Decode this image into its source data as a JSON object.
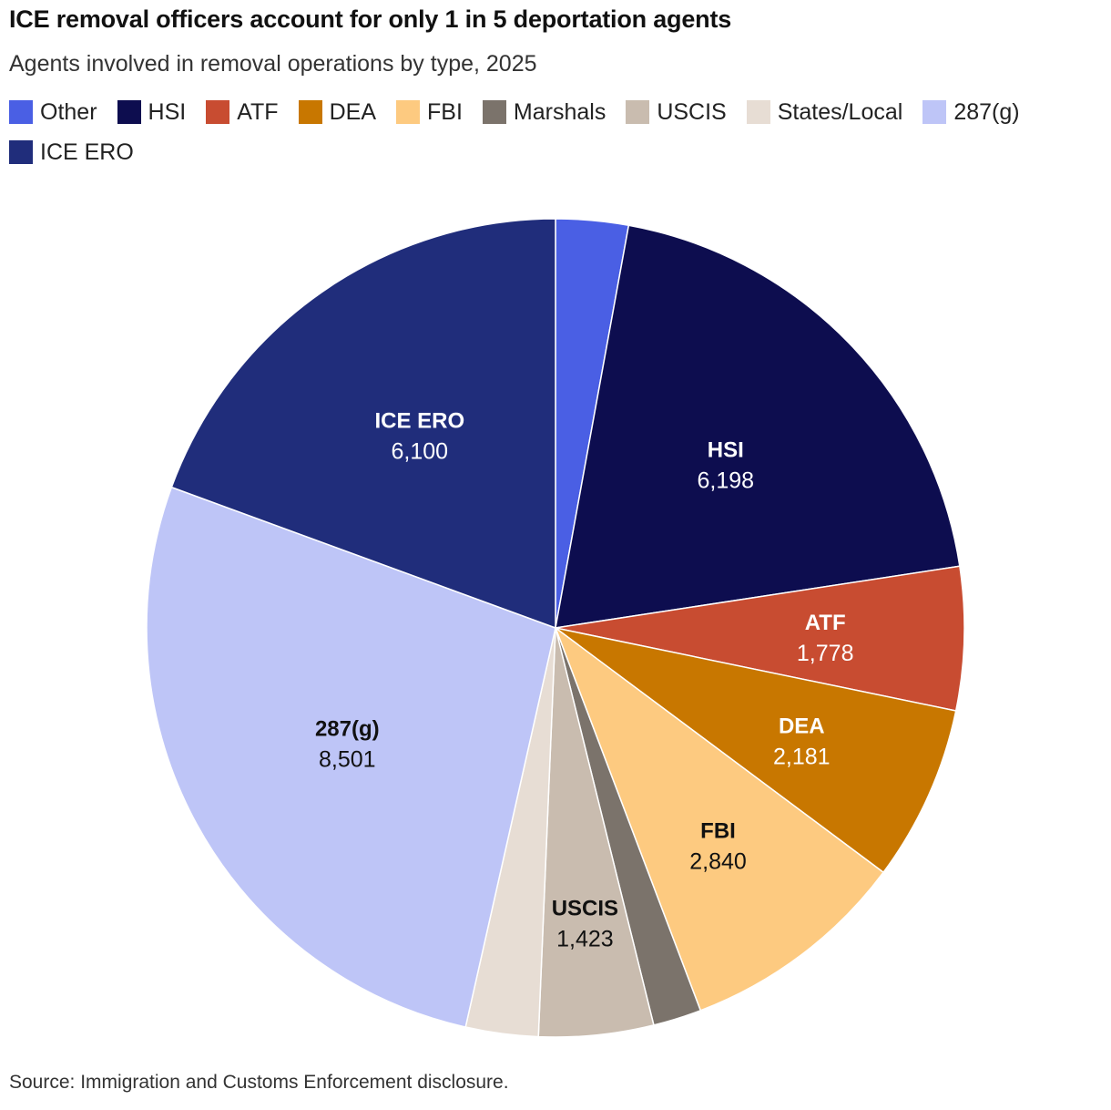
{
  "title": "ICE removal officers account for only 1 in 5 deportation agents",
  "subtitle": "Agents involved in removal operations by type, 2025",
  "source": "Source: Immigration and Customs Enforcement disclosure.",
  "chart_data": {
    "type": "pie",
    "title": "ICE removal officers account for only 1 in 5 deportation agents",
    "subtitle": "Agents involved in removal operations by type, 2025",
    "legend_position": "top-left",
    "start": "top, clockwise",
    "slices": [
      {
        "label": "Other",
        "value": 900,
        "display": "",
        "color": "#4a5fe4",
        "text_color": "#ffffff",
        "labeled": false
      },
      {
        "label": "HSI",
        "value": 6198,
        "display": "6,198",
        "color": "#0d0d4f",
        "text_color": "#ffffff",
        "labeled": true
      },
      {
        "label": "ATF",
        "value": 1778,
        "display": "1,778",
        "color": "#c84c31",
        "text_color": "#ffffff",
        "labeled": true
      },
      {
        "label": "DEA",
        "value": 2181,
        "display": "2,181",
        "color": "#c87700",
        "text_color": "#ffffff",
        "labeled": true
      },
      {
        "label": "FBI",
        "value": 2840,
        "display": "2,840",
        "color": "#fdca80",
        "text_color": "#111111",
        "labeled": true
      },
      {
        "label": "Marshals",
        "value": 600,
        "display": "",
        "color": "#7b736b",
        "text_color": "#ffffff",
        "labeled": false
      },
      {
        "label": "USCIS",
        "value": 1423,
        "display": "1,423",
        "color": "#c9bcaf",
        "text_color": "#111111",
        "labeled": true
      },
      {
        "label": "States/Local",
        "value": 900,
        "display": "",
        "color": "#e7ddd4",
        "text_color": "#111111",
        "labeled": false
      },
      {
        "label": "287(g)",
        "value": 8501,
        "display": "8,501",
        "color": "#bec5f7",
        "text_color": "#111111",
        "labeled": true
      },
      {
        "label": "ICE ERO",
        "value": 6100,
        "display": "6,100",
        "color": "#202d7b",
        "text_color": "#ffffff",
        "labeled": true
      }
    ]
  }
}
